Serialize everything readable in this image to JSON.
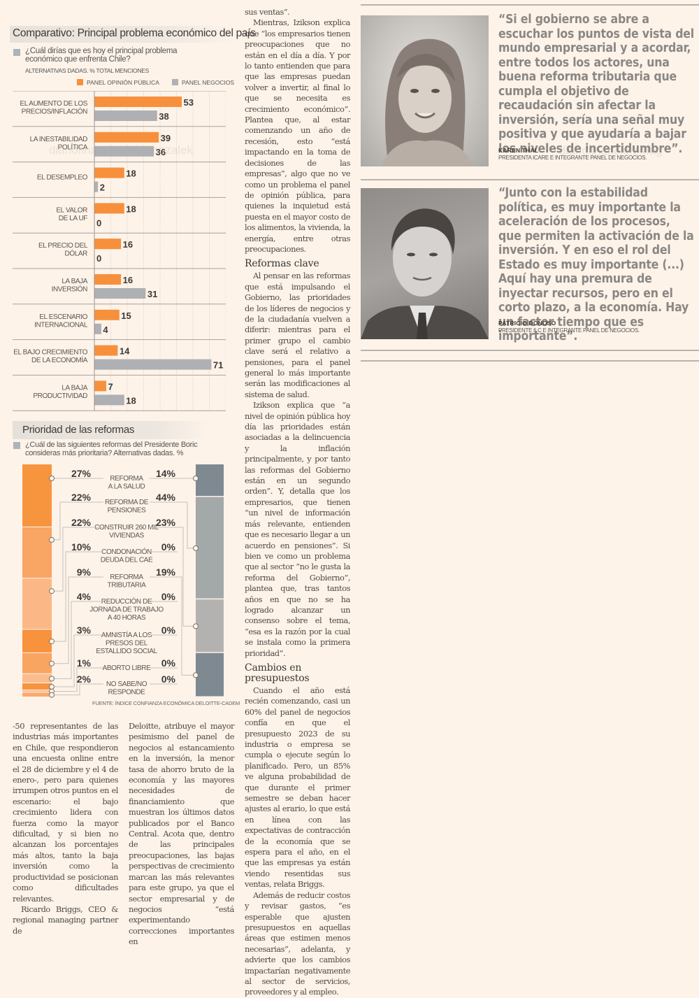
{
  "watermarks": [
    "diariofinanciero#lagonzalek",
    "diariofinanciero#lag"
  ],
  "chart1": {
    "title": "Comparativo: Principal problema económico del país",
    "question": "¿Cuál dirías que es hoy el principal problema económico que enfrenta Chile?",
    "subtitle": "ALTERNATIVAS DADAS. % TOTAL MENCIONES",
    "legend": [
      {
        "label": "PANEL OPINIÓN PÚBLICA",
        "color": "#f7903c"
      },
      {
        "label": "PANEL NEGOCIOS",
        "color": "#aeb0b4"
      }
    ]
  },
  "chart2": {
    "title": "Prioridad de las reformas",
    "question": "¿Cuál de las siguientes reformas del Presidente Boric consideras más prioritaria? Alternativas dadas. %",
    "source": "FUENTE: ÍNDICE CONFIANZA ECONÓMICA DELOITTE-CADEM"
  },
  "chart_data": [
    {
      "type": "bar",
      "orientation": "horizontal",
      "title": "Comparativo: Principal problema económico del país",
      "subtitle": "¿Cuál dirías que es hoy el principal problema económico que enfrenta Chile? ALTERNATIVAS DADAS. % TOTAL MENCIONES",
      "categories": [
        [
          "EL AUMENTO DE LOS",
          "PRECIOS/INFLACIÓN"
        ],
        [
          "LA INESTABILIDAD",
          "POLÍTICA"
        ],
        [
          "EL DESEMPLEO"
        ],
        [
          "EL VALOR",
          "DE LA UF"
        ],
        [
          "EL PRECIO DEL",
          "DÓLAR"
        ],
        [
          "LA BAJA",
          "INVERSIÓN"
        ],
        [
          "EL ESCENARIO",
          "INTERNACIONAL"
        ],
        [
          "EL BAJO CRECIMIENTO",
          "DE LA ECONOMÍA"
        ],
        [
          "LA BAJA",
          "PRODUCTIVIDAD"
        ]
      ],
      "series": [
        {
          "name": "PANEL OPINIÓN PÚBLICA",
          "color": "#f7903c",
          "values": [
            53,
            39,
            18,
            18,
            16,
            16,
            15,
            14,
            7
          ]
        },
        {
          "name": "PANEL NEGOCIOS",
          "color": "#aeb0b4",
          "values": [
            38,
            36,
            2,
            0,
            0,
            31,
            4,
            71,
            18
          ]
        }
      ],
      "xlim": [
        0,
        80
      ],
      "grid": true,
      "legend": "top-right"
    },
    {
      "type": "bar",
      "orientation": "stacked-vertical",
      "title": "Prioridad de las reformas",
      "subtitle": "¿Cuál de las siguientes reformas del Presidente Boric consideras más prioritaria? Alternativas dadas. %",
      "categories": [
        [
          "REFORMA",
          "A LA SALUD"
        ],
        [
          "REFORMA DE",
          "PENSIONES"
        ],
        [
          "CONSTRUIR 260 MIL",
          "VIVIENDAS"
        ],
        [
          "CONDONACIÓN",
          "DEUDA DEL CAE"
        ],
        [
          "REFORMA",
          "TRIBUTARIA"
        ],
        [
          "REDUCCIÓN DE",
          "JORNADA DE TRABAJO",
          "A 40 HORAS"
        ],
        [
          "AMNISTÍA A LOS",
          "PRESOS DEL",
          "ESTALLIDO SOCIAL"
        ],
        [
          "ABORTO LIBRE"
        ],
        [
          "NO SABE/NO",
          "RESPONDE"
        ]
      ],
      "series": [
        {
          "name": "Panel opinión pública",
          "values": [
            27,
            22,
            22,
            10,
            9,
            4,
            3,
            1,
            2
          ],
          "colors": [
            "#f7953f",
            "#f9a563",
            "#fbb886",
            "#f8923c",
            "#f9a562",
            "#fbbd8e",
            "#f8933f",
            "#fbb98a",
            "#f9aa6b"
          ]
        },
        {
          "name": "Panel negocios",
          "values": [
            14,
            44,
            23,
            0,
            19,
            0,
            0,
            0,
            0
          ],
          "colors": [
            "#7f8991",
            "#a3a8a9",
            "#b4b2b1",
            null,
            "#7f8991",
            null,
            null,
            null,
            null
          ]
        }
      ],
      "value_suffix": "%",
      "source": "FUENTE: ÍNDICE CONFIANZA ECONÓMICA DELOITTE-CADEM"
    }
  ],
  "article": {
    "middle_column": [
      {
        "type": "p",
        "indent": false,
        "text": "sus ventas”."
      },
      {
        "type": "p",
        "text": "Mientras, Izikson explica que “los empresarios tienen preocupaciones que no están en el día a día. Y por lo tanto entienden que para que las empresas puedan volver a invertir, al final lo que se necesita es crecimiento económico”. Plantea que, al estar comenzando un año de recesión, esto “está impactando en la toma de decisiones de las empresas”, algo que no ve como un problema el panel de opinión pública, para quienes la inquietud está puesta en el mayor costo de los alimentos, la vivienda, la energía, entre otras preocupaciones."
      },
      {
        "type": "h",
        "text": "Reformas clave"
      },
      {
        "type": "p",
        "text": "Al pensar en las reformas que está impulsando el Gobierno, las prioridades de los líderes de negocios y de la ciudadanía vuelven a diferir: mientras para el primer grupo el cambio clave será el relativo a pensiones, para el panel general lo más importante serán las modificaciones al sistema de salud."
      },
      {
        "type": "p",
        "text": "Izikson explica que “a nivel de opinión pública hoy día las prioridades están asociadas a la delincuencia y la inflación principalmente, y por tanto las reformas del Gobierno están en un segundo orden”. Y, detalla que los empresarios, que tienen “un nivel de información más relevante, entienden que es necesario llegar a un acuerdo en pensiones”. Si bien ve como un problema que al sector “no le gusta la reforma del Gobierno”, plantea que, tras tantos años en que no se ha logrado alcanzar un consenso sobre el tema, “esa es la razón por la cual se instala como la primera prioridad”."
      },
      {
        "type": "h",
        "text": "Cambios en presupuestos"
      },
      {
        "type": "p",
        "text": "Cuando el año está recién comenzando, casi un 60% del panel de negocios confía en que el presupuesto 2023 de su industria o empresa se cumpla o ejecute según lo planificado. Pero, un 85% ve alguna probabilidad de que durante el primer semestre se deban hacer ajustes al erario, lo que está en línea con las expectativas de contracción de la economía que se espera para el año, en el que las empresas ya están viendo resentidas sus ventas, relata Briggs."
      },
      {
        "type": "p",
        "text": "Además de reducir costos y revisar gastos, “es esperable que ajusten presupuestos en aquellas áreas que estimen menos necesarias”, adelanta, y advierte que los cambios impactarían negativamente al sector de servicios, proveedores y al empleo."
      }
    ],
    "bottom_left_column": [
      {
        "type": "p",
        "indent": false,
        "text": "-50 representantes de las industrias más importantes en Chile, que respondieron una encuesta online entre el 28 de diciembre y el 4 de enero-, pero para quienes irrumpen otros puntos en el escenario: el bajo crecimiento lidera con fuerza como la mayor dificultad, y si bien no alcanzan los porcentajes más altos, tanto la baja inversión como la productividad se posicionan como dificultades relevantes."
      },
      {
        "type": "p",
        "text": "Ricardo Briggs, CEO & regional managing partner de"
      }
    ],
    "bottom_middle_column": [
      {
        "type": "p",
        "indent": false,
        "text": "Deloitte, atribuye el mayor pesimismo del panel de negocios al estancamiento en la inversión, la menor tasa de ahorro bruto de la economía y las mayores necesidades de financiamiento que muestran los últimos datos publicados por el Banco Central. Acota que, dentro de las principales preocupaciones, las bajas perspectivas de crecimiento marcan las más relevantes para este grupo, ya que el sector empresarial y de negocios “está experimentando correcciones importantes en"
      }
    ]
  },
  "quotes": [
    {
      "photo": "portrait-woman",
      "text": "“Si el gobierno se abre a escuchar los puntos de vista del mundo empresarial y a acordar, entre todos los actores, una buena reforma tributaria que cumpla el objetivo de recaudación sin afectar la inversión, sería una señal muy positiva y que ayudaría a bajar los niveles de incertidumbre”.",
      "name": "KAREN THAL",
      "role": "PRESIDENTA ICARE E INTEGRANTE PANEL DE NEGOCIOS."
    },
    {
      "photo": "portrait-man",
      "text": "“Junto con la estabilidad política, es muy importante la aceleración de los procesos, que permiten la activación de la inversión. Y en eso el rol del Estado es muy importante (...) Aquí hay una premura de inyectar recursos, pero en el corto plazo, a la economía. Hay un factor tiempo que es importante”.",
      "name": "PATRICIO DONOSO",
      "role": "PRESIDENTE ILC E INTEGRANTE PANEL DE NEGOCIOS."
    }
  ]
}
